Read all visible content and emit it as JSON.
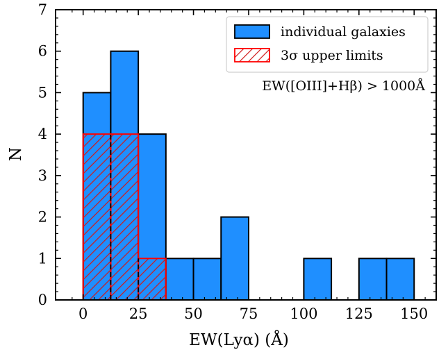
{
  "chart_data": {
    "type": "histogram",
    "xlabel": "EW(Lyα) (Å)",
    "ylabel": "N",
    "xlim": [
      -12.5,
      160
    ],
    "ylim": [
      0,
      7
    ],
    "xticks": [
      0,
      25,
      50,
      75,
      100,
      125,
      150
    ],
    "yticks": [
      0,
      1,
      2,
      3,
      4,
      5,
      6,
      7
    ],
    "bin_width": 12.5,
    "annotation": "EW([OIII]+Hβ) > 1000Å",
    "legend_position": "top-right",
    "series": [
      {
        "name": "individual galaxies",
        "style": "filled",
        "color": "#1f8fff",
        "bins": [
          {
            "x0": 0,
            "x1": 12.5,
            "count": 5
          },
          {
            "x0": 12.5,
            "x1": 25,
            "count": 6
          },
          {
            "x0": 25,
            "x1": 37.5,
            "count": 4
          },
          {
            "x0": 37.5,
            "x1": 50,
            "count": 1
          },
          {
            "x0": 50,
            "x1": 62.5,
            "count": 1
          },
          {
            "x0": 62.5,
            "x1": 75,
            "count": 2
          },
          {
            "x0": 75,
            "x1": 87.5,
            "count": 0
          },
          {
            "x0": 87.5,
            "x1": 100,
            "count": 0
          },
          {
            "x0": 100,
            "x1": 112.5,
            "count": 1
          },
          {
            "x0": 112.5,
            "x1": 125,
            "count": 0
          },
          {
            "x0": 125,
            "x1": 137.5,
            "count": 1
          },
          {
            "x0": 137.5,
            "x1": 150,
            "count": 1
          }
        ]
      },
      {
        "name": "3σ upper limits",
        "style": "hatched",
        "color": "#ff0000",
        "bins": [
          {
            "x0": 0,
            "x1": 12.5,
            "count": 4
          },
          {
            "x0": 12.5,
            "x1": 25,
            "count": 4
          },
          {
            "x0": 25,
            "x1": 37.5,
            "count": 1
          }
        ]
      }
    ]
  }
}
